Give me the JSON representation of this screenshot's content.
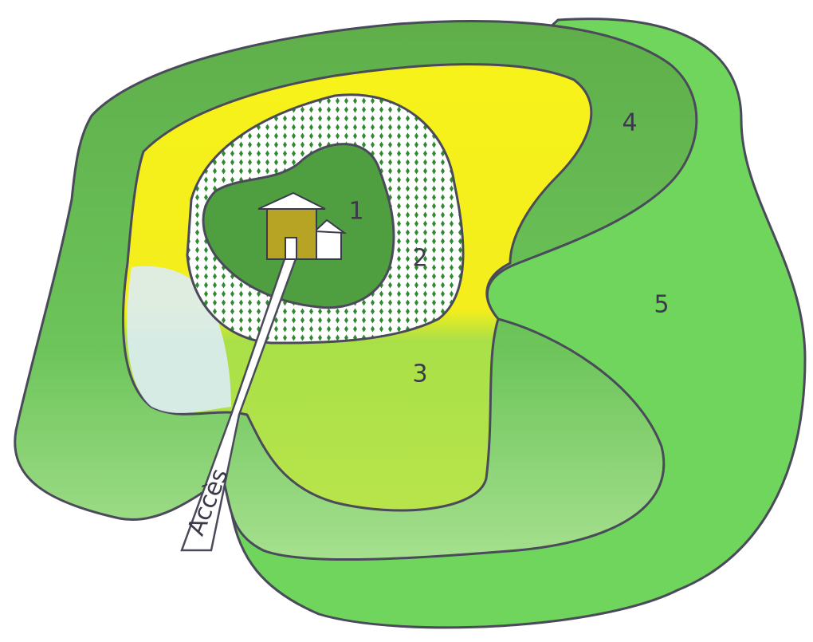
{
  "zones": [
    {
      "label": "1"
    },
    {
      "label": "2"
    },
    {
      "label": "3"
    },
    {
      "label": "4"
    },
    {
      "label": "5"
    }
  ],
  "access": {
    "label": "Accès"
  }
}
